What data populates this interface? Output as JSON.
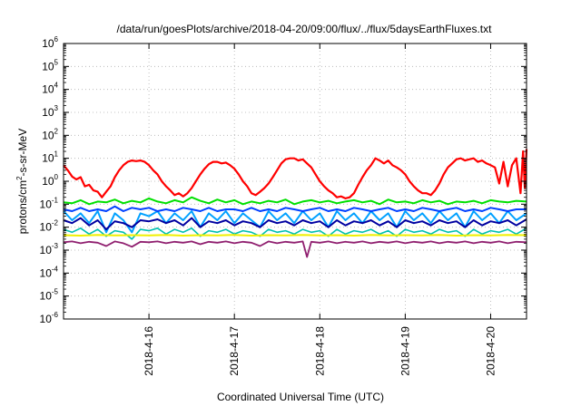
{
  "chart_data": {
    "type": "line",
    "title": "/data/run/goesPlots/archive/2018-04-20/09:00/flux/../flux/5daysEarthFluxes.txt",
    "xlabel": "Coordinated Universal Time (UTC)",
    "ylabel_prefix": "protons/cm",
    "ylabel_sup": "2",
    "ylabel_suffix": "-s-sr-MeV",
    "yscale": "log",
    "ylim_exp": [
      -6,
      6
    ],
    "ytick_base": "10",
    "yticks_exp": [
      "-6",
      "-5",
      "-4",
      "-3",
      "-2",
      "-1",
      "0",
      "1",
      "2",
      "3",
      "4",
      "5",
      "6"
    ],
    "xlim": [
      15.0,
      20.42
    ],
    "xticks": [
      {
        "value": 16,
        "label": "2018-4-16"
      },
      {
        "value": 17,
        "label": "2018-4-17"
      },
      {
        "value": 18,
        "label": "2018-4-18"
      },
      {
        "value": 19,
        "label": "2018-4-19"
      },
      {
        "value": 20,
        "label": "2018-4-20"
      }
    ],
    "grid": true,
    "series": [
      {
        "color": "#ff0000",
        "width": 2.2,
        "x": [
          15.0,
          15.05,
          15.1,
          15.15,
          15.2,
          15.25,
          15.3,
          15.35,
          15.4,
          15.45,
          15.5,
          15.55,
          15.6,
          15.65,
          15.7,
          15.75,
          15.8,
          15.85,
          15.9,
          15.95,
          16.0,
          16.05,
          16.1,
          16.15,
          16.2,
          16.25,
          16.3,
          16.35,
          16.4,
          16.45,
          16.5,
          16.55,
          16.6,
          16.65,
          16.7,
          16.75,
          16.8,
          16.85,
          16.9,
          16.95,
          17.0,
          17.05,
          17.1,
          17.15,
          17.2,
          17.25,
          17.3,
          17.35,
          17.4,
          17.45,
          17.5,
          17.55,
          17.6,
          17.65,
          17.7,
          17.75,
          17.8,
          17.85,
          17.9,
          17.95,
          18.0,
          18.05,
          18.1,
          18.15,
          18.2,
          18.25,
          18.3,
          18.35,
          18.4,
          18.45,
          18.5,
          18.55,
          18.6,
          18.65,
          18.7,
          18.75,
          18.8,
          18.85,
          18.9,
          18.95,
          19.0,
          19.05,
          19.1,
          19.15,
          19.2,
          19.25,
          19.3,
          19.35,
          19.4,
          19.45,
          19.5,
          19.55,
          19.6,
          19.65,
          19.7,
          19.75,
          19.8,
          19.85,
          19.9,
          19.95,
          20.0,
          20.05,
          20.1,
          20.15,
          20.2,
          20.25,
          20.3,
          20.35,
          20.38,
          20.4,
          20.42
        ],
        "y": [
          5,
          3,
          1.6,
          1.2,
          1.5,
          0.6,
          0.7,
          0.4,
          0.35,
          0.2,
          0.35,
          0.6,
          1.5,
          3,
          5,
          7,
          8,
          7.5,
          8,
          7,
          5,
          3,
          2,
          1,
          0.6,
          0.4,
          0.25,
          0.3,
          0.22,
          0.3,
          0.5,
          1,
          2,
          3.5,
          5.5,
          7,
          7,
          6,
          6.5,
          5,
          3.5,
          2,
          1,
          0.6,
          0.3,
          0.25,
          0.35,
          0.5,
          0.8,
          1.5,
          3,
          6,
          9,
          10,
          10,
          8,
          9,
          6,
          4,
          2,
          1,
          0.6,
          0.4,
          0.3,
          0.2,
          0.22,
          0.18,
          0.2,
          0.3,
          0.7,
          1.5,
          3,
          5,
          10,
          8,
          6,
          8,
          5,
          4,
          3,
          2,
          1,
          0.6,
          0.4,
          0.3,
          0.3,
          0.25,
          0.4,
          0.8,
          2,
          4,
          6,
          9,
          10,
          8,
          9,
          10,
          7,
          8,
          6,
          5,
          4,
          0.8,
          7,
          0.6,
          5,
          10,
          0.3,
          20,
          0.5,
          25
        ]
      },
      {
        "color": "#00e000",
        "width": 2,
        "x": [
          15.0,
          15.1,
          15.2,
          15.3,
          15.4,
          15.5,
          15.6,
          15.7,
          15.8,
          15.9,
          16.0,
          16.1,
          16.2,
          16.3,
          16.4,
          16.5,
          16.6,
          16.7,
          16.8,
          16.9,
          17.0,
          17.1,
          17.2,
          17.3,
          17.4,
          17.5,
          17.6,
          17.7,
          17.8,
          17.9,
          18.0,
          18.1,
          18.2,
          18.3,
          18.4,
          18.5,
          18.6,
          18.7,
          18.8,
          18.9,
          19.0,
          19.1,
          19.2,
          19.3,
          19.4,
          19.5,
          19.6,
          19.7,
          19.8,
          19.9,
          20.0,
          20.1,
          20.2,
          20.3,
          20.42
        ],
        "y": [
          0.12,
          0.11,
          0.15,
          0.1,
          0.13,
          0.12,
          0.16,
          0.11,
          0.14,
          0.12,
          0.18,
          0.13,
          0.11,
          0.15,
          0.12,
          0.2,
          0.14,
          0.11,
          0.16,
          0.12,
          0.15,
          0.1,
          0.13,
          0.11,
          0.14,
          0.12,
          0.16,
          0.1,
          0.13,
          0.15,
          0.12,
          0.14,
          0.11,
          0.13,
          0.15,
          0.12,
          0.14,
          0.1,
          0.16,
          0.12,
          0.13,
          0.11,
          0.15,
          0.12,
          0.14,
          0.1,
          0.13,
          0.12,
          0.14,
          0.11,
          0.15,
          0.13,
          0.12,
          0.14,
          0.13
        ]
      },
      {
        "color": "#00a0ff",
        "width": 2,
        "x": [
          15.0,
          15.1,
          15.2,
          15.3,
          15.4,
          15.5,
          15.6,
          15.7,
          15.8,
          15.9,
          16.0,
          16.1,
          16.2,
          16.3,
          16.4,
          16.5,
          16.6,
          16.7,
          16.8,
          16.9,
          17.0,
          17.1,
          17.2,
          17.3,
          17.4,
          17.5,
          17.6,
          17.7,
          17.8,
          17.9,
          18.0,
          18.1,
          18.2,
          18.3,
          18.4,
          18.5,
          18.6,
          18.7,
          18.8,
          18.9,
          19.0,
          19.1,
          19.2,
          19.3,
          19.4,
          19.5,
          19.6,
          19.7,
          19.8,
          19.9,
          20.0,
          20.1,
          20.2,
          20.3,
          20.42
        ],
        "y": [
          0.05,
          0.02,
          0.04,
          0.015,
          0.05,
          0.006,
          0.04,
          0.02,
          0.006,
          0.04,
          0.03,
          0.05,
          0.015,
          0.04,
          0.02,
          0.05,
          0.01,
          0.04,
          0.02,
          0.05,
          0.015,
          0.04,
          0.02,
          0.01,
          0.05,
          0.02,
          0.04,
          0.015,
          0.05,
          0.02,
          0.04,
          0.01,
          0.05,
          0.02,
          0.04,
          0.015,
          0.05,
          0.02,
          0.04,
          0.01,
          0.05,
          0.02,
          0.04,
          0.015,
          0.05,
          0.02,
          0.04,
          0.01,
          0.05,
          0.02,
          0.04,
          0.015,
          0.05,
          0.02,
          0.04
        ]
      },
      {
        "color": "#0040ff",
        "width": 2,
        "x": [
          15.0,
          15.1,
          15.2,
          15.3,
          15.4,
          15.5,
          15.6,
          15.7,
          15.8,
          15.9,
          16.0,
          16.1,
          16.2,
          16.3,
          16.4,
          16.5,
          16.6,
          16.7,
          16.8,
          16.9,
          17.0,
          17.1,
          17.2,
          17.3,
          17.4,
          17.5,
          17.6,
          17.7,
          17.8,
          17.9,
          18.0,
          18.1,
          18.2,
          18.3,
          18.4,
          18.5,
          18.6,
          18.7,
          18.8,
          18.9,
          19.0,
          19.1,
          19.2,
          19.3,
          19.4,
          19.5,
          19.6,
          19.7,
          19.8,
          19.9,
          20.0,
          20.1,
          20.2,
          20.3,
          20.42
        ],
        "y": [
          0.06,
          0.05,
          0.07,
          0.05,
          0.06,
          0.05,
          0.08,
          0.05,
          0.07,
          0.06,
          0.07,
          0.05,
          0.06,
          0.05,
          0.07,
          0.06,
          0.05,
          0.07,
          0.05,
          0.06,
          0.06,
          0.05,
          0.07,
          0.05,
          0.06,
          0.05,
          0.07,
          0.06,
          0.05,
          0.06,
          0.07,
          0.05,
          0.06,
          0.05,
          0.07,
          0.06,
          0.05,
          0.06,
          0.07,
          0.05,
          0.06,
          0.05,
          0.07,
          0.06,
          0.05,
          0.06,
          0.07,
          0.05,
          0.06,
          0.05,
          0.07,
          0.06,
          0.05,
          0.06,
          0.06
        ]
      },
      {
        "color": "#0000a0",
        "width": 2,
        "x": [
          15.0,
          15.1,
          15.2,
          15.3,
          15.4,
          15.5,
          15.6,
          15.7,
          15.8,
          15.9,
          16.0,
          16.1,
          16.2,
          16.3,
          16.4,
          16.5,
          16.6,
          16.7,
          16.8,
          16.9,
          17.0,
          17.1,
          17.2,
          17.3,
          17.4,
          17.5,
          17.6,
          17.7,
          17.8,
          17.9,
          18.0,
          18.1,
          18.2,
          18.3,
          18.4,
          18.5,
          18.6,
          18.7,
          18.8,
          18.9,
          19.0,
          19.1,
          19.2,
          19.3,
          19.4,
          19.5,
          19.6,
          19.7,
          19.8,
          19.9,
          20.0,
          20.1,
          20.2,
          20.3,
          20.42
        ],
        "y": [
          0.02,
          0.015,
          0.025,
          0.012,
          0.02,
          0.008,
          0.018,
          0.015,
          0.01,
          0.02,
          0.018,
          0.022,
          0.015,
          0.02,
          0.012,
          0.025,
          0.01,
          0.018,
          0.015,
          0.02,
          0.012,
          0.018,
          0.015,
          0.01,
          0.02,
          0.015,
          0.018,
          0.012,
          0.02,
          0.015,
          0.018,
          0.01,
          0.02,
          0.012,
          0.018,
          0.015,
          0.02,
          0.012,
          0.018,
          0.01,
          0.02,
          0.015,
          0.018,
          0.012,
          0.02,
          0.015,
          0.018,
          0.01,
          0.02,
          0.012,
          0.018,
          0.015,
          0.02,
          0.012,
          0.022
        ]
      },
      {
        "color": "#00c0b0",
        "width": 1.6,
        "x": [
          15.0,
          15.1,
          15.2,
          15.3,
          15.4,
          15.5,
          15.6,
          15.7,
          15.8,
          15.9,
          16.0,
          16.1,
          16.2,
          16.3,
          16.4,
          16.5,
          16.6,
          16.7,
          16.8,
          16.9,
          17.0,
          17.1,
          17.2,
          17.3,
          17.4,
          17.5,
          17.6,
          17.7,
          17.8,
          17.9,
          18.0,
          18.1,
          18.2,
          18.3,
          18.4,
          18.5,
          18.6,
          18.7,
          18.8,
          18.9,
          19.0,
          19.1,
          19.2,
          19.3,
          19.4,
          19.5,
          19.6,
          19.7,
          19.8,
          19.9,
          20.0,
          20.1,
          20.2,
          20.3,
          20.42
        ],
        "y": [
          0.008,
          0.006,
          0.009,
          0.005,
          0.008,
          0.004,
          0.007,
          0.006,
          0.003,
          0.008,
          0.007,
          0.009,
          0.005,
          0.008,
          0.006,
          0.009,
          0.004,
          0.007,
          0.006,
          0.008,
          0.005,
          0.007,
          0.006,
          0.004,
          0.008,
          0.006,
          0.007,
          0.005,
          0.008,
          0.006,
          0.007,
          0.004,
          0.008,
          0.005,
          0.007,
          0.006,
          0.008,
          0.005,
          0.007,
          0.004,
          0.008,
          0.006,
          0.007,
          0.005,
          0.008,
          0.006,
          0.007,
          0.004,
          0.008,
          0.005,
          0.007,
          0.006,
          0.008,
          0.005,
          0.009
        ]
      },
      {
        "color": "#f0f000",
        "width": 2,
        "x": [
          15.0,
          15.2,
          15.4,
          15.6,
          15.8,
          16.0,
          16.2,
          16.4,
          16.6,
          16.8,
          17.0,
          17.2,
          17.4,
          17.6,
          17.8,
          18.0,
          18.2,
          18.4,
          18.6,
          18.8,
          19.0,
          19.2,
          19.4,
          19.6,
          19.8,
          20.0,
          20.2,
          20.42
        ],
        "y": [
          0.0045,
          0.0043,
          0.0046,
          0.0044,
          0.0045,
          0.0044,
          0.0046,
          0.0043,
          0.0045,
          0.0044,
          0.0046,
          0.0043,
          0.0045,
          0.0044,
          0.0046,
          0.0044,
          0.0045,
          0.0043,
          0.0046,
          0.0044,
          0.0045,
          0.0044,
          0.0046,
          0.0043,
          0.0045,
          0.0044,
          0.0046,
          0.0045
        ]
      },
      {
        "color": "#902070",
        "width": 1.8,
        "x": [
          15.0,
          15.1,
          15.2,
          15.3,
          15.4,
          15.5,
          15.6,
          15.7,
          15.8,
          15.9,
          16.0,
          16.1,
          16.2,
          16.3,
          16.4,
          16.5,
          16.6,
          16.7,
          16.8,
          16.9,
          17.0,
          17.1,
          17.2,
          17.3,
          17.4,
          17.5,
          17.6,
          17.7,
          17.8,
          17.85,
          17.9,
          18.0,
          18.1,
          18.2,
          18.3,
          18.4,
          18.5,
          18.6,
          18.7,
          18.8,
          18.9,
          19.0,
          19.1,
          19.2,
          19.3,
          19.4,
          19.5,
          19.6,
          19.7,
          19.8,
          19.9,
          20.0,
          20.1,
          20.2,
          20.3,
          20.42
        ],
        "y": [
          0.0022,
          0.0024,
          0.002,
          0.0023,
          0.0021,
          0.0015,
          0.0024,
          0.002,
          0.0014,
          0.0023,
          0.0022,
          0.0024,
          0.002,
          0.0023,
          0.0021,
          0.0024,
          0.0018,
          0.0023,
          0.0021,
          0.0024,
          0.002,
          0.0023,
          0.0021,
          0.0015,
          0.0024,
          0.002,
          0.0023,
          0.0021,
          0.0024,
          0.0005,
          0.0023,
          0.0021,
          0.0024,
          0.002,
          0.0023,
          0.0021,
          0.0024,
          0.002,
          0.0023,
          0.0021,
          0.0024,
          0.002,
          0.0023,
          0.0021,
          0.0024,
          0.002,
          0.0023,
          0.0021,
          0.0024,
          0.002,
          0.0023,
          0.0021,
          0.0024,
          0.002,
          0.0023,
          0.0022
        ]
      }
    ]
  }
}
